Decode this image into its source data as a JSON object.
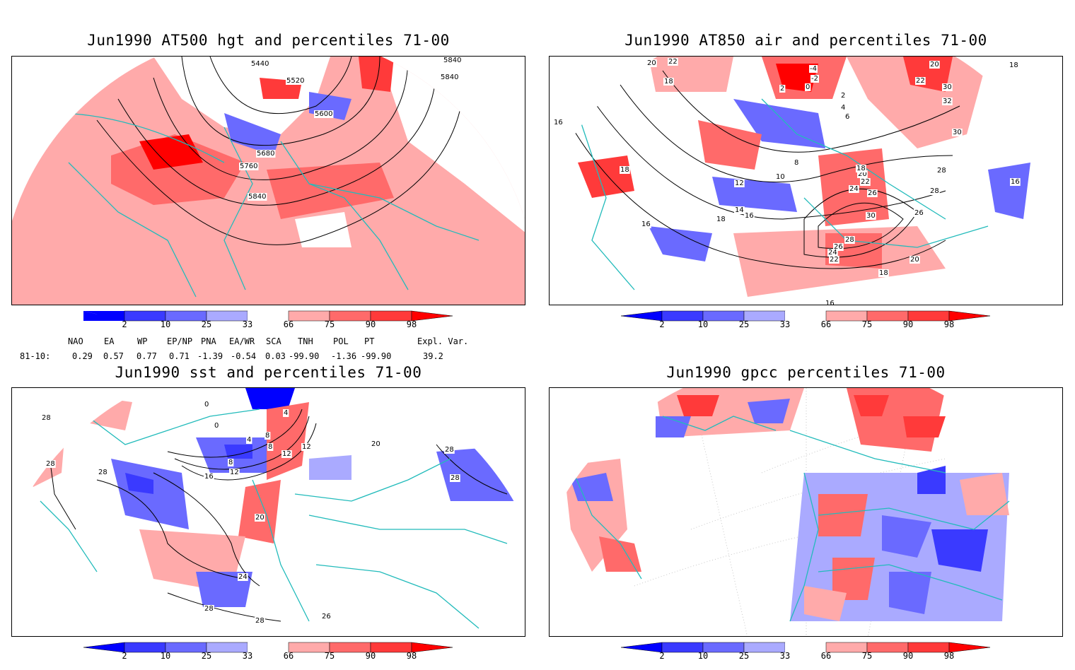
{
  "panels": [
    {
      "title": "Jun1990 AT500 hgt and percentiles 71-00",
      "contour_labels": [
        "5440",
        "5520",
        "5600",
        "5680",
        "5760",
        "5840",
        "5840",
        "5840"
      ]
    },
    {
      "title": "Jun1990 AT850 air and percentiles 71-00",
      "contour_labels": [
        "20",
        "22",
        "18",
        "18",
        "16",
        "16",
        "18",
        "10",
        "8",
        "12",
        "14",
        "16",
        "24",
        "26",
        "22",
        "20",
        "18",
        "30",
        "26",
        "28",
        "26",
        "24",
        "22",
        "20",
        "18",
        "16",
        "-4",
        "-2",
        "0",
        "2",
        "4",
        "6",
        "20",
        "22",
        "30",
        "30",
        "28",
        "28",
        "16",
        "18",
        "32",
        "2"
      ]
    },
    {
      "title": "Jun1990 sst and percentiles 71-00",
      "contour_labels": [
        "28",
        "28",
        "20",
        "24",
        "28",
        "28",
        "28",
        "26",
        "0",
        "0",
        "4",
        "8",
        "12",
        "16",
        "8",
        "12",
        "4",
        "8",
        "12",
        "20",
        "28",
        "28"
      ]
    },
    {
      "title": "Jun1990 gpcc percentiles 71-00",
      "contour_labels": []
    }
  ],
  "colorbar": {
    "ticks": [
      "2",
      "10",
      "25",
      "33",
      "66",
      "75",
      "90",
      "98"
    ],
    "colors": [
      "#0000ff",
      "#3a3aff",
      "#6a6aff",
      "#aaaaff",
      "#ffffff",
      "#ffaaaa",
      "#ff6a6a",
      "#ff3a3a",
      "#ff0000"
    ]
  },
  "indices": {
    "header": [
      "NAO",
      "EA",
      "WP",
      "EP/NP",
      "PNA",
      "EA/WR",
      "SCA",
      "TNH",
      "POL",
      "PT",
      "Expl. Var."
    ],
    "row_label": "81-10:",
    "values": [
      "0.29",
      "0.57",
      "0.77",
      "0.71",
      "-1.39",
      "-0.54",
      "0.03",
      "-99.90",
      "-1.36",
      "-99.90",
      "39.2"
    ]
  },
  "colors": {
    "coast": "#22bbbb",
    "map_line": "#000000"
  }
}
